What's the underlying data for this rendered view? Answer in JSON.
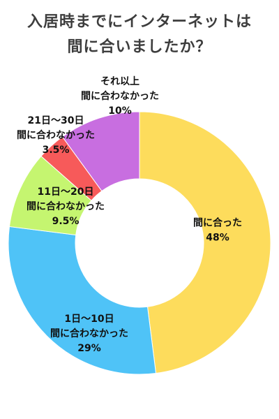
{
  "title_lines": [
    "入居時までにインターネットは",
    "間に合いましたか？"
  ],
  "chart_data": {
    "type": "pie",
    "title": "入居時までにインターネットは間に合いましたか？",
    "slices": [
      {
        "label": [
          "間に合った"
        ],
        "value": 48,
        "value_label": "48%",
        "color": "#fddc5c"
      },
      {
        "label": [
          "1日～10日",
          "間に合わなかった"
        ],
        "value": 29,
        "value_label": "29%",
        "color": "#4fc3f7"
      },
      {
        "label": [
          "11日～20日",
          "間に合わなかった"
        ],
        "value": 9.5,
        "value_label": "9.5%",
        "color": "#c5f570"
      },
      {
        "label": [
          "21日～30日",
          "間に合わなかった"
        ],
        "value": 3.5,
        "value_label": "3.5%",
        "color": "#f75a5a"
      },
      {
        "label": [
          "それ以上",
          "間に合わなかった"
        ],
        "value": 10,
        "value_label": "10%",
        "color": "#c86ee0"
      }
    ]
  }
}
